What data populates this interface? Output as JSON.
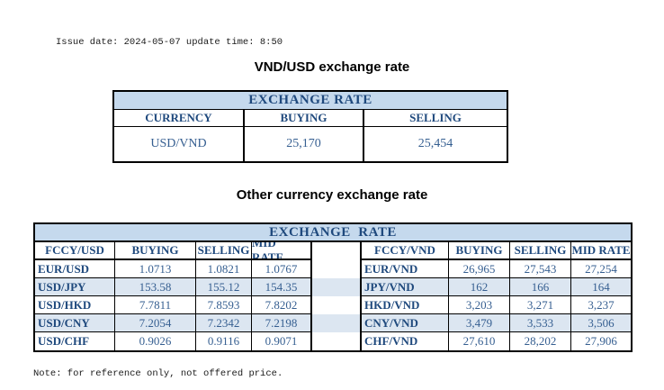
{
  "colors": {
    "header_bg": "#C5D9ED",
    "stripe_bg": "#DCE6F1",
    "label_text": "#1F497D",
    "value_text": "#365F91",
    "border": "#000000"
  },
  "page": {
    "issue_line": "Issue date: 2024-05-07 update time: 8:50",
    "note_line": "Note: for reference only, not offered price."
  },
  "vnd_usd_section": {
    "title": "VND/USD exchange rate",
    "table": {
      "header": "EXCHANGE RATE",
      "columns": [
        "CURRENCY",
        "BUYING",
        "SELLING"
      ],
      "rows": [
        {
          "currency": "USD/VND",
          "buying": "25,170",
          "selling": "25,454"
        }
      ]
    }
  },
  "other_section": {
    "title": "Other currency exchange rate",
    "table": {
      "header": "EXCHANGE  RATE",
      "left": {
        "columns": [
          "FCCY/USD",
          "BUYING",
          "SELLING",
          "MID RATE"
        ],
        "rows": [
          {
            "pair": "EUR/USD",
            "buying": "1.0713",
            "selling": "1.0821",
            "mid": "1.0767"
          },
          {
            "pair": "USD/JPY",
            "buying": "153.58",
            "selling": "155.12",
            "mid": "154.35"
          },
          {
            "pair": "USD/HKD",
            "buying": "7.7811",
            "selling": "7.8593",
            "mid": "7.8202"
          },
          {
            "pair": "USD/CNY",
            "buying": "7.2054",
            "selling": "7.2342",
            "mid": "7.2198"
          },
          {
            "pair": "USD/CHF",
            "buying": "0.9026",
            "selling": "0.9116",
            "mid": "0.9071"
          }
        ]
      },
      "right": {
        "columns": [
          "FCCY/VND",
          "BUYING",
          "SELLING",
          "MID RATE"
        ],
        "rows": [
          {
            "pair": "EUR/VND",
            "buying": "26,965",
            "selling": "27,543",
            "mid": "27,254"
          },
          {
            "pair": "JPY/VND",
            "buying": "162",
            "selling": "166",
            "mid": "164"
          },
          {
            "pair": "HKD/VND",
            "buying": "3,203",
            "selling": "3,271",
            "mid": "3,237"
          },
          {
            "pair": "CNY/VND",
            "buying": "3,479",
            "selling": "3,533",
            "mid": "3,506"
          },
          {
            "pair": "CHF/VND",
            "buying": "27,610",
            "selling": "28,202",
            "mid": "27,906"
          }
        ]
      }
    }
  }
}
